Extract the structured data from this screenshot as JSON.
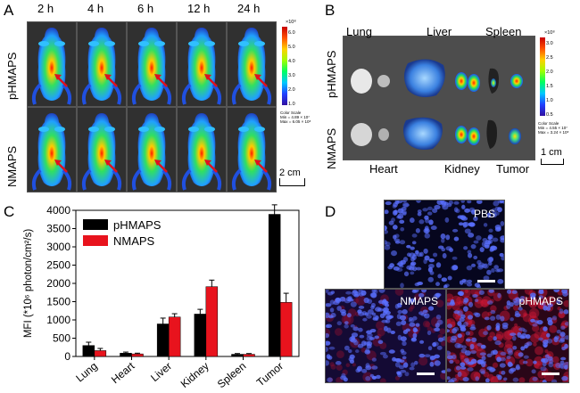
{
  "panels": {
    "a": "A",
    "b": "B",
    "c": "C",
    "d": "D"
  },
  "panel_a": {
    "times": [
      "2 h",
      "4 h",
      "6 h",
      "12 h",
      "24 h"
    ],
    "rows": [
      "pHMAPS",
      "NMAPS"
    ],
    "colorbar_exponent": "×10⁸",
    "colorbar_ticks": [
      "6.0",
      "5.0",
      "4.0",
      "3.0",
      "2.0",
      "1.0"
    ],
    "color_scale_title": "Color Scale",
    "color_scale_min": "Min = 4.89 × 10⁷",
    "color_scale_max": "Max = 6.05 × 10⁸",
    "scale_bar": "2 cm"
  },
  "panel_b": {
    "organs_top": [
      "Lung",
      "Liver",
      "Spleen"
    ],
    "organs_bottom": [
      "Heart",
      "Kidney",
      "Tumor"
    ],
    "rows": [
      "pHMAPS",
      "NMAPS"
    ],
    "colorbar_exponent": "×10⁸",
    "colorbar_ticks": [
      "3.0",
      "2.5",
      "2.0",
      "1.5",
      "1.0",
      "0.5"
    ],
    "color_scale_title": "Color Scale",
    "color_scale_min": "Min = 4.55 × 10⁷",
    "color_scale_max": "Max = 3.24 × 10⁸",
    "scale_bar": "1 cm"
  },
  "panel_d": {
    "labels": [
      "PBS",
      "NMAPS",
      "pHMAPS"
    ]
  },
  "chart_data": {
    "type": "bar",
    "categories": [
      "Lung",
      "Heart",
      "Liver",
      "Kidney",
      "Spleen",
      "Tumor"
    ],
    "series": [
      {
        "name": "pHMAPS",
        "color": "#000000",
        "values": [
          300,
          90,
          890,
          1160,
          60,
          3890
        ],
        "errors": [
          90,
          30,
          160,
          130,
          20,
          260
        ]
      },
      {
        "name": "NMAPS",
        "color": "#e8131d",
        "values": [
          160,
          70,
          1080,
          1910,
          60,
          1480
        ],
        "errors": [
          60,
          20,
          90,
          180,
          20,
          250
        ]
      }
    ],
    "ylabel": "MFI (*10⁶ photon/cm²/s)",
    "ylim": [
      0,
      4000
    ],
    "yticks": [
      "0",
      "500",
      "1000",
      "1500",
      "2000",
      "2500",
      "3000",
      "3500",
      "4000"
    ],
    "legend_position": "top-left"
  }
}
